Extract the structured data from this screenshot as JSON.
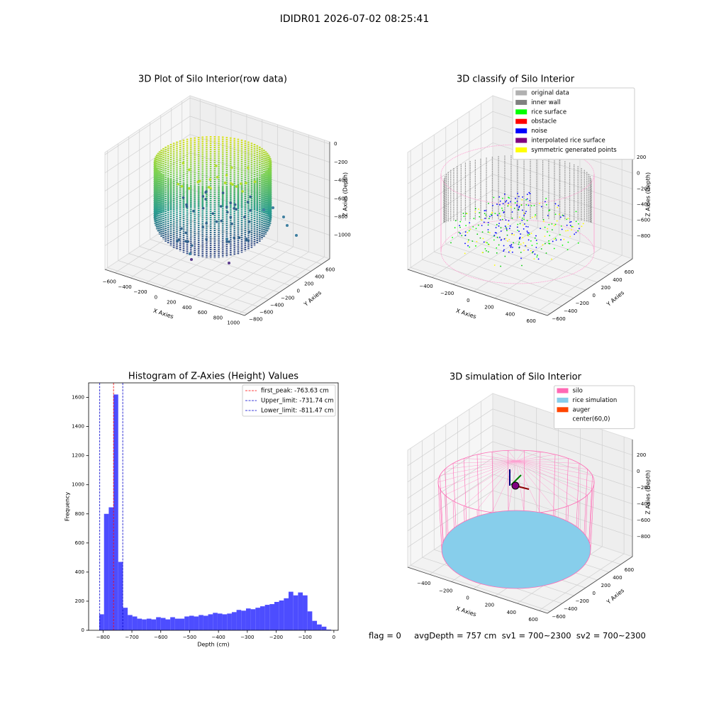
{
  "suptitle": "IDIDR01 2026-07-02 08:25:41",
  "footer": "flag = 0     avgDepth = 757 cm  sv1 = 700~2300  sv2 = 700~2300",
  "chart_data": [
    {
      "type": "scatter3d",
      "title": "3D Plot of Silo Interior(row data)",
      "xlabel": "X Axies",
      "ylabel": "Y Axies",
      "zlabel": "Z Axies (Depth)",
      "xlim": [
        -730,
        1070
      ],
      "xticks": [
        {
          "value": -600,
          "label": "−600"
        },
        {
          "value": -400,
          "label": "−400"
        },
        {
          "value": -200,
          "label": "−200"
        },
        0,
        200,
        400,
        600,
        800,
        1000
      ],
      "ylim": [
        -850,
        750
      ],
      "yticks": [
        {
          "value": -800,
          "label": "−800"
        },
        {
          "value": -600,
          "label": "−600"
        },
        {
          "value": -400,
          "label": "−400"
        },
        {
          "value": -200,
          "label": "−200"
        },
        0,
        200,
        400,
        600
      ],
      "zlim": [
        -1260,
        25
      ],
      "zticks": [
        0,
        {
          "value": -200,
          "label": "−200"
        },
        {
          "value": -400,
          "label": "−400"
        },
        {
          "value": -600,
          "label": "−600"
        },
        {
          "value": -800,
          "label": "−800"
        },
        {
          "value": -1000,
          "label": "−1000"
        }
      ]
    },
    {
      "type": "scatter3d",
      "title": "3D classify of Silo Interior",
      "xlabel": "X Axies",
      "ylabel": "Y Axies",
      "zlabel": "Z Axies (Depth)",
      "xlim": [
        -630,
        700
      ],
      "xticks": [
        {
          "value": -400,
          "label": "−400"
        },
        {
          "value": -200,
          "label": "−200"
        },
        0,
        200,
        400,
        600
      ],
      "ylim": [
        -650,
        800
      ],
      "yticks": [
        {
          "value": -600,
          "label": "−600"
        },
        {
          "value": -400,
          "label": "−400"
        },
        {
          "value": -200,
          "label": "−200"
        },
        0,
        200,
        400,
        600
      ],
      "zlim": [
        -1090,
        400
      ],
      "zticks": [
        200,
        0,
        {
          "value": -200,
          "label": "−200"
        },
        {
          "value": -400,
          "label": "−400"
        },
        {
          "value": -600,
          "label": "−600"
        },
        {
          "value": -800,
          "label": "−800"
        }
      ],
      "legend": "upper right",
      "series": [
        {
          "name": "original data",
          "color": "#b0b0b0"
        },
        {
          "name": "inner wall",
          "color": "#808080"
        },
        {
          "name": "rice surface",
          "color": "#00ff00"
        },
        {
          "name": "obstacle",
          "color": "#ff0000"
        },
        {
          "name": "noise",
          "color": "#0000ff"
        },
        {
          "name": "interpolated rice surface",
          "color": "#800080"
        },
        {
          "name": "symmetric generated points",
          "color": "#ffff00"
        }
      ]
    },
    {
      "type": "histogram",
      "title": "Histogram of Z-Axies (Height) Values",
      "xlabel": "Depth (cm)",
      "ylabel": "Frequency",
      "color": "#4d4dff",
      "xlim": [
        -850,
        15
      ],
      "xticks": [
        {
          "value": -800,
          "label": "−800"
        },
        {
          "value": -700,
          "label": "−700"
        },
        {
          "value": -600,
          "label": "−600"
        },
        {
          "value": -500,
          "label": "−500"
        },
        {
          "value": -400,
          "label": "−400"
        },
        {
          "value": -300,
          "label": "−300"
        },
        {
          "value": -200,
          "label": "−200"
        },
        {
          "value": -100,
          "label": "−100"
        },
        0
      ],
      "ylim": [
        0,
        1700
      ],
      "yticks": [
        0,
        200,
        400,
        600,
        800,
        1000,
        1200,
        1400,
        1600
      ],
      "bins": [
        -813,
        -796.6,
        -780.2,
        -763.8,
        -747.4,
        -731,
        -714.6,
        -698.2,
        -681.8,
        -665.4,
        -649,
        -632.6,
        -616.2,
        -599.8,
        -583.4,
        -567,
        -550.6,
        -534.2,
        -517.8,
        -501.4,
        -485,
        -468.6,
        -452.2,
        -435.8,
        -419.4,
        -403,
        -386.6,
        -370.2,
        -353.8,
        -337.4,
        -321,
        -304.6,
        -288.2,
        -271.8,
        -255.4,
        -239,
        -222.6,
        -206.2,
        -189.8,
        -173.4,
        -157,
        -140.6,
        -124.2,
        -107.8,
        -91.4,
        -75,
        -58.6,
        -42.2,
        -25.8,
        -9.4
      ],
      "values": [
        110,
        800,
        845,
        1620,
        470,
        155,
        105,
        95,
        80,
        75,
        80,
        75,
        90,
        85,
        75,
        90,
        80,
        80,
        95,
        100,
        95,
        105,
        100,
        110,
        120,
        115,
        110,
        115,
        125,
        140,
        135,
        150,
        145,
        155,
        165,
        175,
        180,
        195,
        205,
        220,
        265,
        240,
        260,
        240,
        130,
        65,
        40,
        25,
        5
      ],
      "legend": "upper right",
      "vlines": [
        {
          "name": "first_peak: -763.63 cm",
          "value": -763.63,
          "color": "#ff0000"
        },
        {
          "name": "Upper_limit: -731.74 cm",
          "value": -731.74,
          "color": "#0000cc"
        },
        {
          "name": "Lower_limit: -811.47 cm",
          "value": -811.47,
          "color": "#0000cc"
        }
      ]
    },
    {
      "type": "scatter3d",
      "title": "3D simulation of Silo Interior",
      "xlabel": "X Axies",
      "ylabel": "Y Axies",
      "zlabel": "Z Axies (Depth)",
      "xlim": [
        -600,
        677
      ],
      "xticks": [
        {
          "value": -400,
          "label": "−400"
        },
        {
          "value": -200,
          "label": "−200"
        },
        0,
        200,
        400,
        600
      ],
      "ylim": [
        -650,
        800
      ],
      "yticks": [
        {
          "value": -600,
          "label": "−600"
        },
        {
          "value": -400,
          "label": "−400"
        },
        {
          "value": -200,
          "label": "−200"
        },
        0,
        200,
        400,
        600
      ],
      "zlim": [
        -1045,
        390
      ],
      "zticks": [
        200,
        0,
        {
          "value": -200,
          "label": "−200"
        },
        {
          "value": -400,
          "label": "−400"
        },
        {
          "value": -600,
          "label": "−600"
        },
        {
          "value": -800,
          "label": "−800"
        }
      ],
      "legend": "upper right",
      "series": [
        {
          "name": "silo",
          "color": "#ff69b4"
        },
        {
          "name": "rice simulation",
          "color": "#87ceeb"
        },
        {
          "name": "auger",
          "color": "#ff4500"
        },
        {
          "name": "center(60,0)"
        }
      ]
    }
  ]
}
